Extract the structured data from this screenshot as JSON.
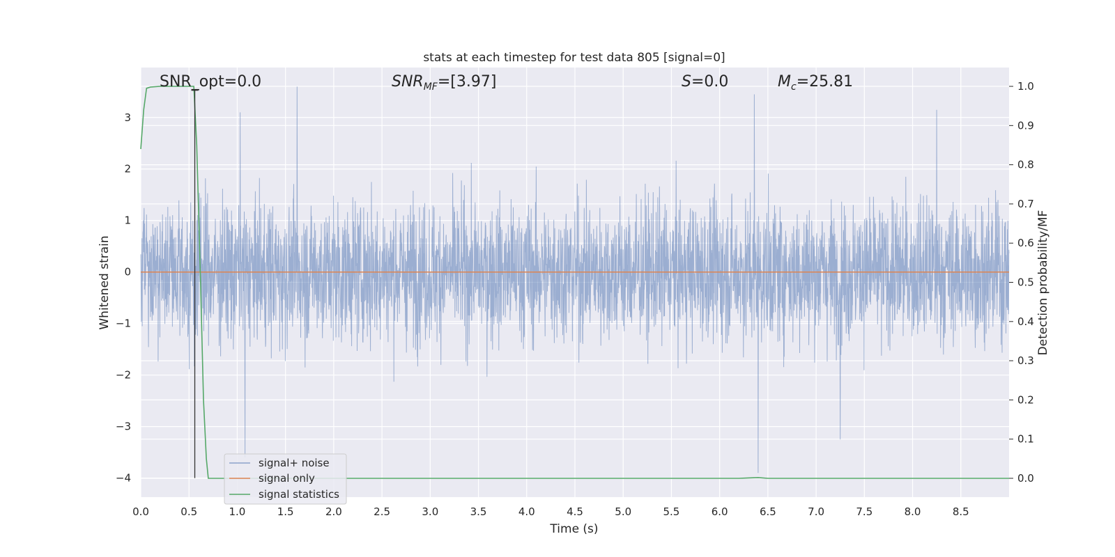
{
  "chart_data": {
    "type": "line",
    "title": "stats at each timestep for test data 805 [signal=0]",
    "xlabel": "Time (s)",
    "ylabel_left": "Whitened strain",
    "ylabel_right": "Detection probability/MF",
    "xlim": [
      0.0,
      9.0
    ],
    "ylim_left": [
      -4.37,
      3.97
    ],
    "ylim_right": [
      -0.048,
      1.048
    ],
    "x_ticks": [
      "0.0",
      "0.5",
      "1.0",
      "1.5",
      "2.0",
      "2.5",
      "3.0",
      "3.5",
      "4.0",
      "4.5",
      "5.0",
      "5.5",
      "6.0",
      "6.5",
      "7.0",
      "7.5",
      "8.0",
      "8.5"
    ],
    "y_ticks_left": [
      "−4",
      "−3",
      "−2",
      "−1",
      "0",
      "1",
      "2",
      "3"
    ],
    "y_ticks_right": [
      "0.0",
      "0.1",
      "0.2",
      "0.3",
      "0.4",
      "0.5",
      "0.6",
      "0.7",
      "0.8",
      "0.9",
      "1.0"
    ],
    "grid": true,
    "legend_placement": "lower-left",
    "annotations": {
      "snr_opt": "SNR_opt=0.0",
      "snr_mf_main": "SNR",
      "snr_mf_sub": "MF",
      "snr_mf_value": "=[3.97]",
      "s_main": "S",
      "s_value": "=0.0",
      "mc_main": "M",
      "mc_sub": "c",
      "mc_value": "=25.81"
    },
    "series": [
      {
        "name": "signal+ noise",
        "axis": "left",
        "color": "#4c72b0",
        "description_level": "whitened noise, roughly within ±2.5 with spikes",
        "notable_extremes": [
          {
            "x": 1.03,
            "y": 3.1
          },
          {
            "x": 1.62,
            "y": 3.6
          },
          {
            "x": 1.08,
            "y": -3.6
          },
          {
            "x": 6.36,
            "y": 3.45
          },
          {
            "x": 6.4,
            "y": -3.9
          },
          {
            "x": 7.25,
            "y": -3.25
          },
          {
            "x": 8.25,
            "y": 3.15
          }
        ]
      },
      {
        "name": "signal only",
        "axis": "left",
        "color": "#dd8452",
        "x": [
          0.0,
          9.0
        ],
        "y": [
          0.0,
          0.0
        ]
      },
      {
        "name": "signal statistics",
        "axis": "right",
        "color": "#55a868",
        "x": [
          0.0,
          0.03,
          0.06,
          0.1,
          0.2,
          0.3,
          0.4,
          0.5,
          0.55,
          0.58,
          0.62,
          0.65,
          0.68,
          0.7,
          1.0,
          3.0,
          6.2,
          6.3,
          6.4,
          6.5,
          9.0
        ],
        "y": [
          0.84,
          0.94,
          0.995,
          0.998,
          1.0,
          1.0,
          1.0,
          1.0,
          1.0,
          0.85,
          0.5,
          0.2,
          0.05,
          0.0,
          0.0,
          0.0,
          0.0,
          0.001,
          0.002,
          0.0,
          0.0
        ]
      }
    ],
    "marker": {
      "x": 0.56,
      "y_left_bottom": -4.0,
      "y_right_top": 0.99,
      "color": "#333333"
    }
  }
}
